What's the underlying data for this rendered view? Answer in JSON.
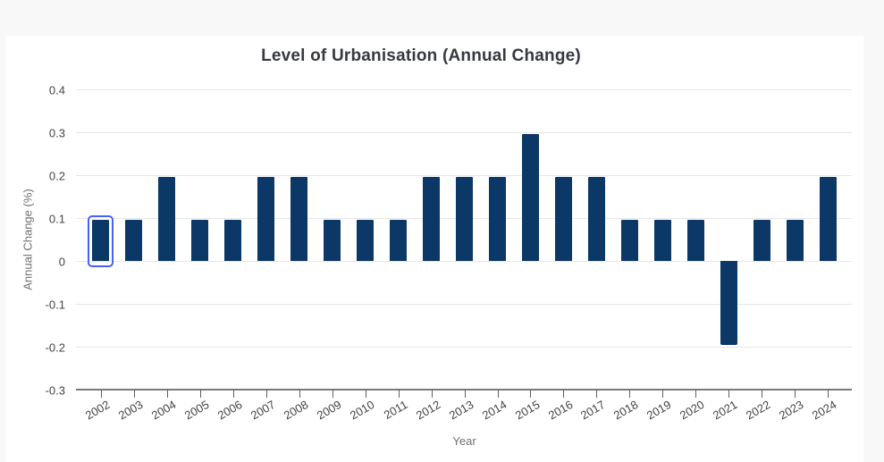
{
  "page": {
    "background_color": "#f8f8f8",
    "card_color": "#ffffff"
  },
  "chart_data": {
    "type": "bar",
    "title": "Level of Urbanisation (Annual Change)",
    "xlabel": "Year",
    "ylabel": "Annual Change (%)",
    "categories": [
      "2002",
      "2003",
      "2004",
      "2005",
      "2006",
      "2007",
      "2008",
      "2009",
      "2010",
      "2011",
      "2012",
      "2013",
      "2014",
      "2015",
      "2016",
      "2017",
      "2018",
      "2019",
      "2020",
      "2021",
      "2022",
      "2023",
      "2024"
    ],
    "values": [
      0.1,
      0.1,
      0.2,
      0.1,
      0.1,
      0.2,
      0.2,
      0.1,
      0.1,
      0.1,
      0.2,
      0.2,
      0.2,
      0.3,
      0.2,
      0.2,
      0.1,
      0.1,
      0.1,
      -0.2,
      0.1,
      0.1,
      0.2
    ],
    "ylim": [
      -0.3,
      0.4
    ],
    "yticks": [
      "0.4",
      "0.3",
      "0.2",
      "0.1",
      "0",
      "-0.1",
      "-0.2",
      "-0.3"
    ],
    "ytick_values": [
      0.4,
      0.3,
      0.2,
      0.1,
      0,
      -0.1,
      -0.2,
      -0.3
    ],
    "grid": true,
    "legend": "none",
    "bar_color": "#0b3866",
    "selected_index": 0,
    "selection_ring_color": "#4b5ef5",
    "gridline_color": "#e6e6e6",
    "axis_line_color": "#7a7a7a",
    "tick_label_color": "#444444",
    "axis_title_color": "#717171",
    "title_color": "#363940"
  }
}
